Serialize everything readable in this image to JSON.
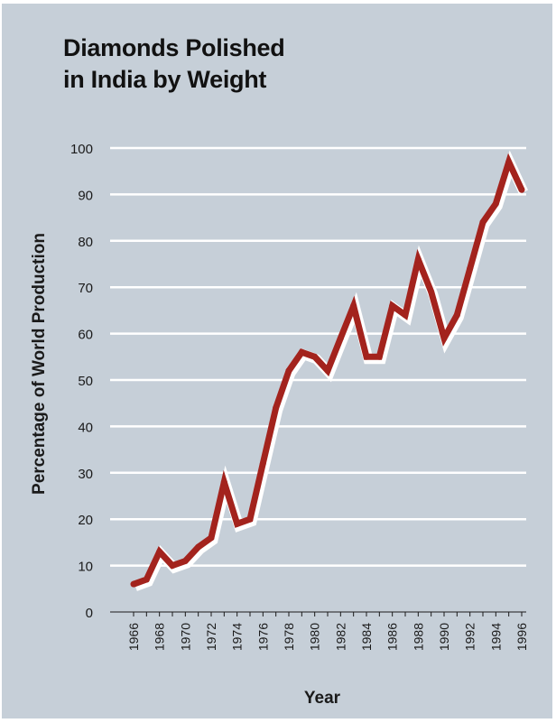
{
  "chart_data": {
    "type": "line",
    "title_lines": [
      "Diamonds Polished",
      "in India by Weight"
    ],
    "xlabel": "Year",
    "ylabel": "Percentage of World Production",
    "x": [
      1966,
      1967,
      1968,
      1969,
      1970,
      1971,
      1972,
      1973,
      1974,
      1975,
      1976,
      1977,
      1978,
      1979,
      1980,
      1981,
      1982,
      1983,
      1984,
      1985,
      1986,
      1987,
      1988,
      1989,
      1990,
      1991,
      1992,
      1993,
      1994,
      1995,
      1996
    ],
    "y": [
      6,
      7,
      13,
      10,
      11,
      14,
      16,
      28,
      19,
      20,
      32,
      44,
      52,
      56,
      55,
      52,
      59,
      66,
      55,
      55,
      66,
      64,
      76,
      69,
      59,
      64,
      74,
      84,
      88,
      97,
      91
    ],
    "xticks": [
      "1966",
      "1968",
      "1970",
      "1972",
      "1974",
      "1976",
      "1978",
      "1980",
      "1982",
      "1984",
      "1986",
      "1988",
      "1990",
      "1992",
      "1994",
      "1996"
    ],
    "yticks": [
      "0",
      "10",
      "20",
      "30",
      "40",
      "50",
      "60",
      "70",
      "80",
      "90",
      "100"
    ],
    "xlim": [
      1966,
      1996
    ],
    "ylim": [
      0,
      100
    ],
    "grid": true,
    "colors": {
      "line": "#a3231d",
      "line_outline": "#ffffff",
      "background": "#c6cfd8",
      "grid": "#ffffff",
      "text": "#1a1a1a"
    }
  }
}
